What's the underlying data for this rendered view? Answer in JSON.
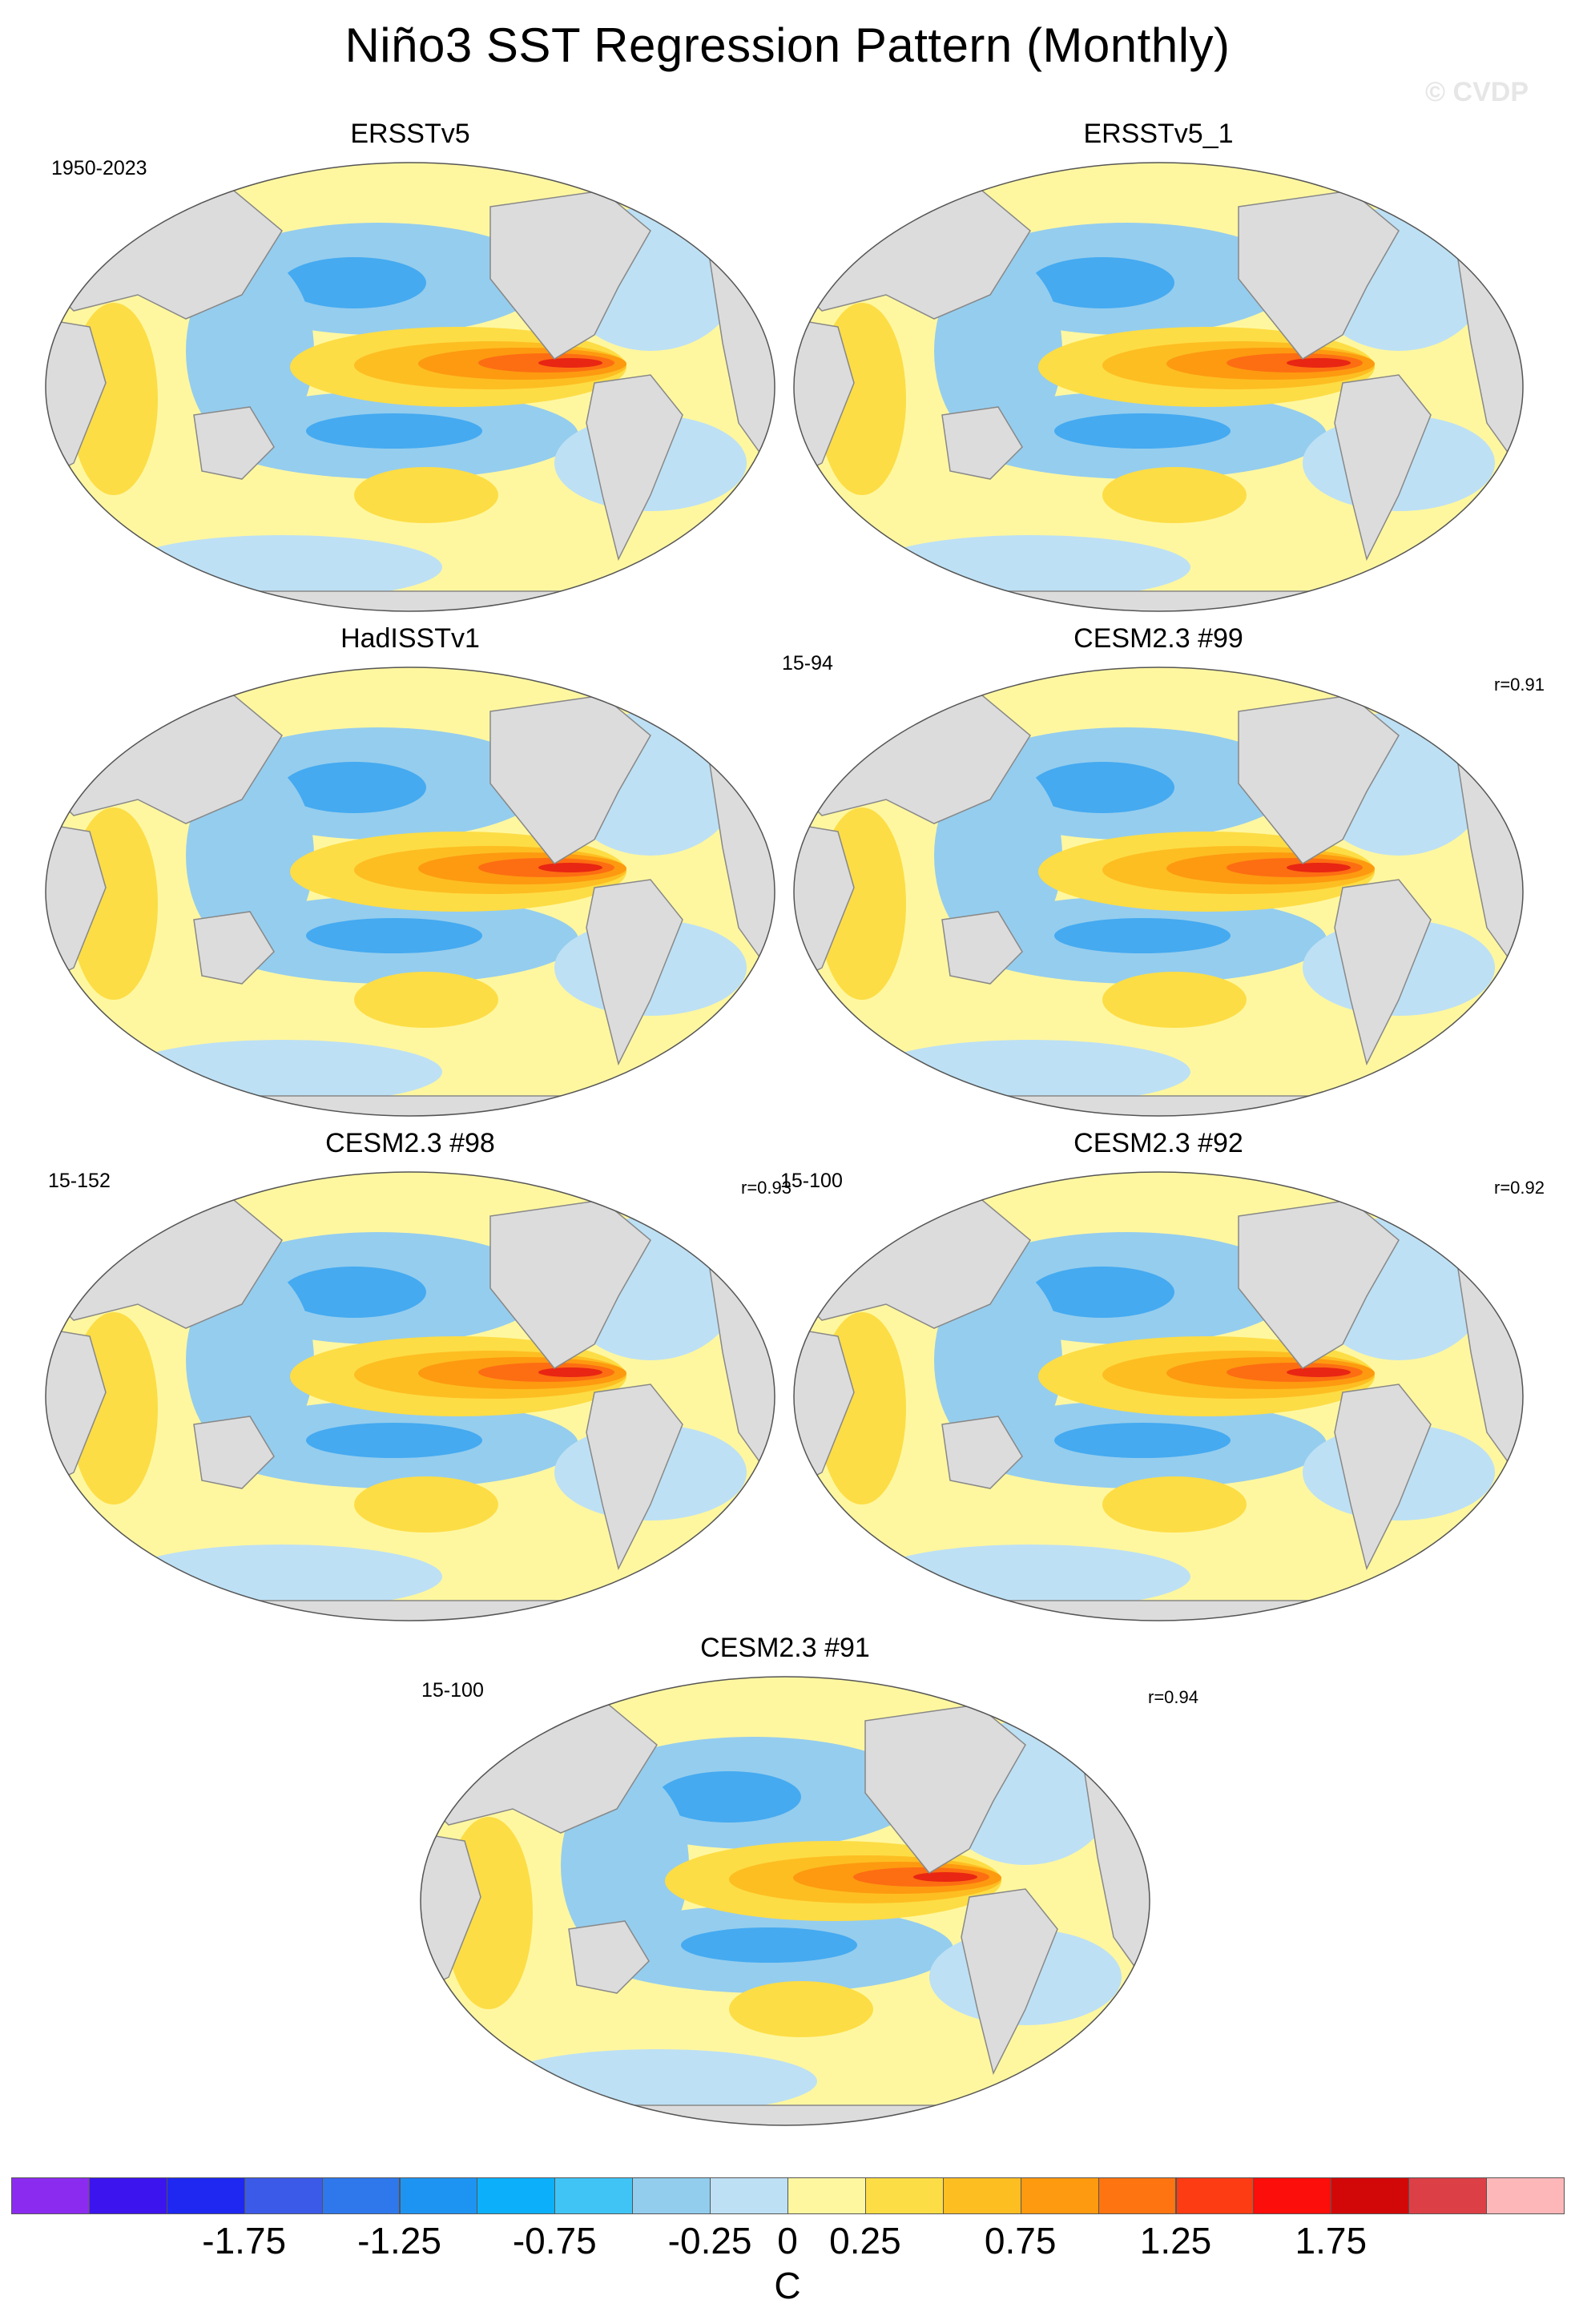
{
  "title": "Niño3 SST Regression Pattern (Monthly)",
  "watermark": "© CVDP",
  "colors": {
    "land": "#dcdcdc",
    "coast": "#888888",
    "c_neg_strong": "#45aaf0",
    "c_neg": "#95cdee",
    "c_neg_weak": "#bde0f4",
    "c_pos_weak": "#fff7a0",
    "c_pos": "#fddd45",
    "c_pos_mid": "#fdbe22",
    "c_pos_strong": "#fd9a10",
    "c_pos_max": "#fd6d12",
    "c_peak": "#e82613"
  },
  "panels": [
    {
      "title": "ERSSTv5",
      "period": "1950-2023",
      "corr": ""
    },
    {
      "title": "ERSSTv5_1",
      "period": "",
      "corr": ""
    },
    {
      "title": "HadISSTv1",
      "period": "",
      "corr": ""
    },
    {
      "title": "CESM2.3 #99",
      "period": "15-94",
      "corr": "r=0.91"
    },
    {
      "title": "CESM2.3 #98",
      "period": "15-152",
      "corr": "r=0.93"
    },
    {
      "title": "CESM2.3 #92",
      "period": "15-100",
      "corr": "r=0.92"
    },
    {
      "title": "CESM2.3 #91",
      "period": "15-100",
      "corr": "r=0.94"
    }
  ],
  "colorbar": {
    "unit": "C",
    "tick_labels": [
      "-1.75",
      "-1.25",
      "-0.75",
      "-0.25",
      "0",
      "0.25",
      "0.75",
      "1.25",
      "1.75"
    ],
    "tick_values": [
      -1.75,
      -1.25,
      -0.75,
      -0.25,
      0,
      0.25,
      0.75,
      1.25,
      1.75
    ],
    "colors": [
      "#8c2bf0",
      "#3c14ee",
      "#1e28f0",
      "#3c5ae8",
      "#2e78ec",
      "#1e94f2",
      "#0cb0fa",
      "#40c4f6",
      "#92cdee",
      "#bde0f4",
      "#fff7a0",
      "#fddd45",
      "#fdbe22",
      "#fd9a10",
      "#fd7410",
      "#fd3c14",
      "#fc0e0a",
      "#d20808",
      "#dc4046",
      "#fdb7b9"
    ]
  }
}
